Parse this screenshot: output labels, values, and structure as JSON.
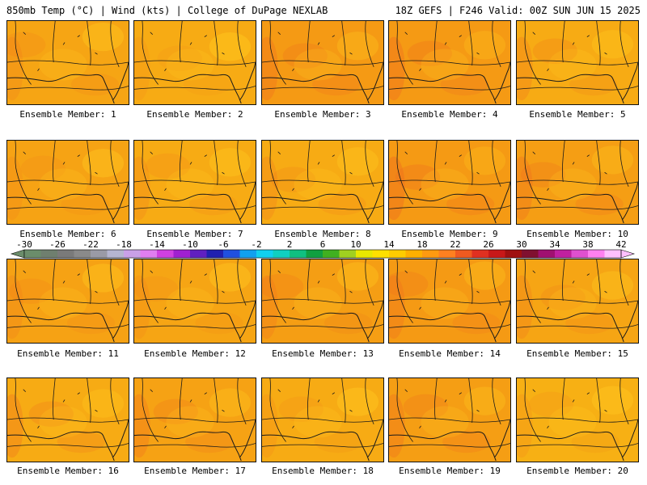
{
  "header": {
    "left": "850mb Temp (°C) | Wind (kts) | College of DuPage NEXLAB",
    "right": "18Z GEFS | F246 Valid: 00Z SUN JUN 15 2025"
  },
  "panels": [
    {
      "label": "Ensemble Member: 1",
      "tint": "#f6a514",
      "hot": 0.25
    },
    {
      "label": "Ensemble Member: 2",
      "tint": "#f7ab14",
      "hot": 0.15
    },
    {
      "label": "Ensemble Member: 3",
      "tint": "#f59a14",
      "hot": 0.45
    },
    {
      "label": "Ensemble Member: 4",
      "tint": "#f59a14",
      "hot": 0.5
    },
    {
      "label": "Ensemble Member: 5",
      "tint": "#f7ab14",
      "hot": 0.35
    },
    {
      "label": "Ensemble Member: 6",
      "tint": "#f6a314",
      "hot": 0.2
    },
    {
      "label": "Ensemble Member: 7",
      "tint": "#f7ab14",
      "hot": 0.25
    },
    {
      "label": "Ensemble Member: 8",
      "tint": "#f7ab14",
      "hot": 0.3
    },
    {
      "label": "Ensemble Member: 9",
      "tint": "#f59a14",
      "hot": 0.55
    },
    {
      "label": "Ensemble Member: 10",
      "tint": "#f59e14",
      "hot": 0.45
    },
    {
      "label": "Ensemble Member: 11",
      "tint": "#f6a214",
      "hot": 0.25
    },
    {
      "label": "Ensemble Member: 12",
      "tint": "#f6a514",
      "hot": 0.2
    },
    {
      "label": "Ensemble Member: 13",
      "tint": "#f59e14",
      "hot": 0.35
    },
    {
      "label": "Ensemble Member: 14",
      "tint": "#f59a14",
      "hot": 0.4
    },
    {
      "label": "Ensemble Member: 15",
      "tint": "#f6a514",
      "hot": 0.3
    },
    {
      "label": "Ensemble Member: 16",
      "tint": "#f7ab14",
      "hot": 0.4
    },
    {
      "label": "Ensemble Member: 17",
      "tint": "#f6a214",
      "hot": 0.4
    },
    {
      "label": "Ensemble Member: 18",
      "tint": "#f7ab14",
      "hot": 0.2
    },
    {
      "label": "Ensemble Member: 19",
      "tint": "#f59e14",
      "hot": 0.45
    },
    {
      "label": "Ensemble Member: 20",
      "tint": "#f7b014",
      "hot": 0.2
    }
  ],
  "colorbar": {
    "unit": "°C",
    "labels": [
      "-30",
      "-26",
      "-22",
      "-18",
      "-14",
      "-10",
      "-6",
      "-2",
      "2",
      "6",
      "10",
      "14",
      "18",
      "22",
      "26",
      "30",
      "34",
      "38",
      "42"
    ],
    "colors": [
      "#6b8d6b",
      "#6f7f6f",
      "#7a7a7a",
      "#8a8a8a",
      "#9a9aa6",
      "#b5b5d0",
      "#c9a0e8",
      "#e07ef0",
      "#d040e0",
      "#a020d0",
      "#6020c0",
      "#2020b0",
      "#2050e0",
      "#10a0f0",
      "#10d0f0",
      "#10d0c0",
      "#10c080",
      "#10a040",
      "#40b020",
      "#a0d020",
      "#e8e800",
      "#ffe000",
      "#ffcc00",
      "#ffb000",
      "#ff9a10",
      "#ff8020",
      "#f05a20",
      "#e03020",
      "#c81818",
      "#a01010",
      "#801030",
      "#a01070",
      "#c020a0",
      "#e050d0",
      "#ff80f0",
      "#ffc0ff"
    ]
  },
  "map": {
    "coast_color": "#1a1a1a",
    "warm_patch_color": "#f06e1e",
    "cool_patch_color": "#ffc81e"
  }
}
